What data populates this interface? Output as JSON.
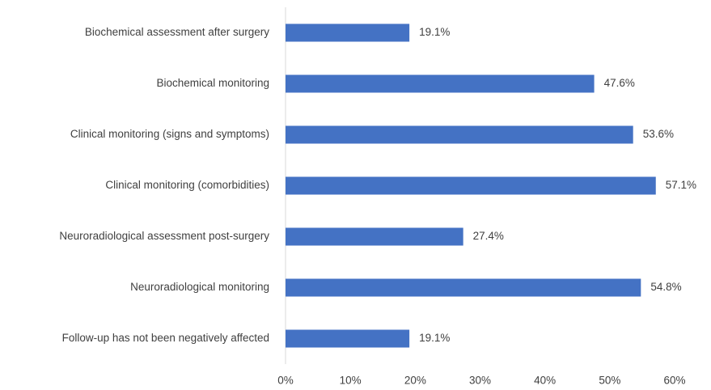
{
  "chart_data": {
    "type": "bar",
    "orientation": "horizontal",
    "categories": [
      "Biochemical assessment after surgery",
      "Biochemical monitoring",
      "Clinical monitoring (signs and symptoms)",
      "Clinical monitoring (comorbidities)",
      "Neuroradiological assessment post-surgery",
      "Neuroradiological monitoring",
      "Follow-up has not been negatively affected"
    ],
    "values": [
      19.1,
      47.6,
      53.6,
      57.1,
      27.4,
      54.8,
      19.1
    ],
    "value_labels": [
      "19.1%",
      "47.6%",
      "53.6%",
      "57.1%",
      "27.4%",
      "54.8%",
      "19.1%"
    ],
    "color": "#4472c4",
    "xlim": [
      0,
      60
    ],
    "xticks": [
      {
        "value": 0,
        "label": "0%"
      },
      {
        "value": 10,
        "label": "10%"
      },
      {
        "value": 20,
        "label": "20%"
      },
      {
        "value": 30,
        "label": "30%"
      },
      {
        "value": 40,
        "label": "40%"
      },
      {
        "value": 50,
        "label": "50%"
      },
      {
        "value": 60,
        "label": "60%"
      }
    ],
    "grid": false
  }
}
